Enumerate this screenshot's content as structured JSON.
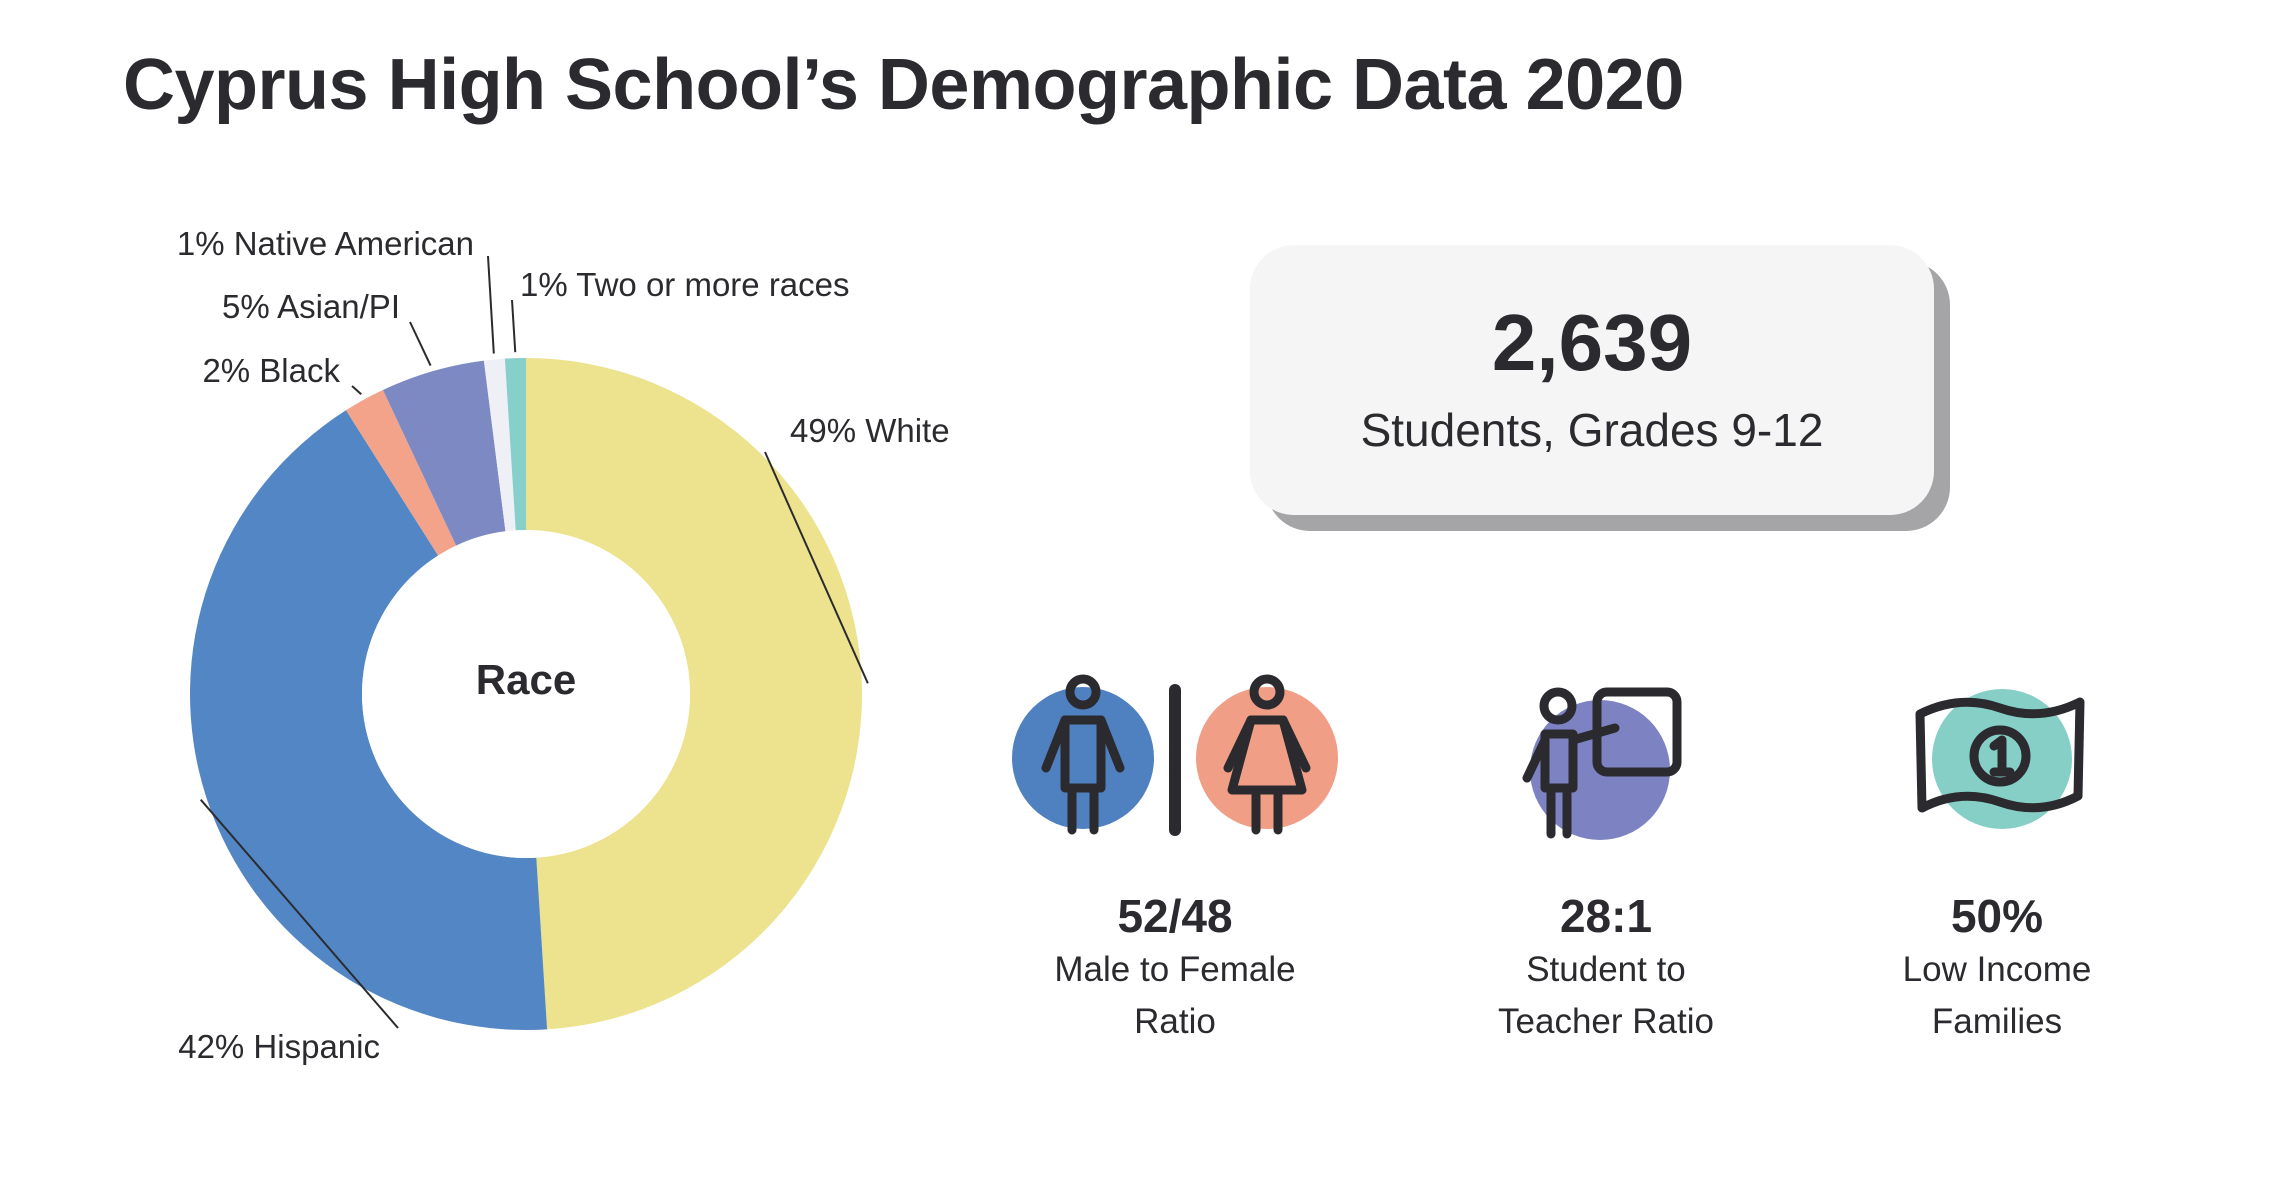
{
  "title": "Cyprus High School’s Demographic Data 2020",
  "chart_data": {
    "type": "pie",
    "title": "Race",
    "slices": [
      {
        "label": "49% White",
        "value": 49,
        "color": "#ede28d"
      },
      {
        "label": "42% Hispanic",
        "value": 42,
        "color": "#5286c4"
      },
      {
        "label": "2% Black",
        "value": 2,
        "color": "#f2a38a"
      },
      {
        "label": "5% Asian/PI",
        "value": 5,
        "color": "#7c89c3"
      },
      {
        "label": "1% Native American",
        "value": 1,
        "color": "#eef0f5"
      },
      {
        "label": "1% Two or more races",
        "value": 1,
        "color": "#87cfcb"
      }
    ]
  },
  "total": {
    "number": "2,639",
    "label": "Students, Grades 9-12"
  },
  "stats": [
    {
      "value": "52/48",
      "line1": "Male to Female",
      "line2": "Ratio",
      "icon": "male-female-icon"
    },
    {
      "value": "28:1",
      "line1": "Student to",
      "line2": "Teacher Ratio",
      "icon": "teacher-board-icon"
    },
    {
      "value": "50%",
      "line1": "Low Income",
      "line2": "Families",
      "icon": "money-bill-icon"
    }
  ],
  "colors": {
    "text": "#2b2b2f",
    "male": "#4f80c0",
    "female": "#f19e86",
    "teacher": "#7d83c2",
    "money": "#86cfc7",
    "card": "#f4f5f4",
    "card_shadow": "#a5a5a8"
  }
}
